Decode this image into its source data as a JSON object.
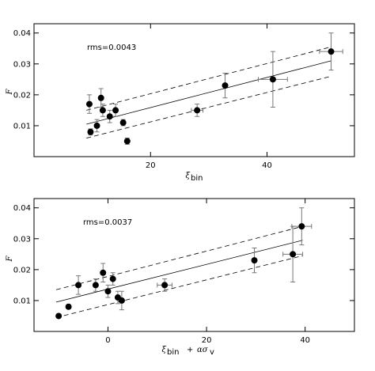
{
  "chart_data": [
    {
      "type": "scatter",
      "xlabel": "ξ_bin",
      "ylabel": "F",
      "annotation": "rms=0.0043",
      "xlim": [
        0,
        55
      ],
      "ylim": [
        0.0,
        0.043
      ],
      "x_ticks": [
        20,
        40
      ],
      "y_ticks": [
        "0.01",
        "0.02",
        "0.03",
        "0.04"
      ],
      "points": [
        {
          "x": 9.5,
          "y": 0.017,
          "yerr": 0.003
        },
        {
          "x": 9.7,
          "y": 0.008,
          "yerr": 0.001
        },
        {
          "x": 10.8,
          "y": 0.01,
          "yerr": 0.002
        },
        {
          "x": 11.5,
          "y": 0.019,
          "yerr": 0.003
        },
        {
          "x": 11.8,
          "y": 0.015,
          "yerr": 0.002
        },
        {
          "x": 13.0,
          "y": 0.013,
          "yerr": 0.002
        },
        {
          "x": 14.0,
          "y": 0.015,
          "yerr": 0.002
        },
        {
          "x": 15.3,
          "y": 0.011,
          "yerr": 0.001
        },
        {
          "x": 16.0,
          "y": 0.005,
          "yerr": 0.001
        },
        {
          "x": 28.0,
          "y": 0.015,
          "yerr": 0.002,
          "xerr": 1.0
        },
        {
          "x": 32.8,
          "y": 0.023,
          "yerr": 0.004
        },
        {
          "x": 41.0,
          "y": 0.025,
          "yerr": 0.009,
          "xerr": 2.5
        },
        {
          "x": 51.0,
          "y": 0.034,
          "yerr": 0.006,
          "xerr": 2.0
        }
      ],
      "fit_line": [
        [
          9.0,
          0.0105
        ],
        [
          51.0,
          0.031
        ]
      ],
      "upper_band": [
        [
          9.0,
          0.015
        ],
        [
          51.0,
          0.0355
        ]
      ],
      "lower_band": [
        [
          9.0,
          0.006
        ],
        [
          51.0,
          0.026
        ]
      ]
    },
    {
      "type": "scatter",
      "xlabel": "ξ_bin + ασ_v",
      "ylabel": "F",
      "annotation": "rms=0.0037",
      "xlim": [
        -15,
        50
      ],
      "ylim": [
        0.0,
        0.043
      ],
      "x_ticks": [
        0,
        20,
        40
      ],
      "y_ticks": [
        "0.01",
        "0.02",
        "0.03",
        "0.04"
      ],
      "points": [
        {
          "x": -10.0,
          "y": 0.005,
          "yerr": 0.0005
        },
        {
          "x": -8.0,
          "y": 0.008,
          "yerr": 0.0005
        },
        {
          "x": -6.0,
          "y": 0.015,
          "yerr": 0.003
        },
        {
          "x": -2.5,
          "y": 0.015,
          "yerr": 0.002
        },
        {
          "x": -1.0,
          "y": 0.019,
          "yerr": 0.003
        },
        {
          "x": 0.0,
          "y": 0.013,
          "yerr": 0.002
        },
        {
          "x": 1.0,
          "y": 0.017,
          "yerr": 0.002
        },
        {
          "x": 2.0,
          "y": 0.011,
          "yerr": 0.002
        },
        {
          "x": 2.8,
          "y": 0.01,
          "yerr": 0.003
        },
        {
          "x": 11.5,
          "y": 0.015,
          "yerr": 0.002,
          "xerr": 1.5
        },
        {
          "x": 29.7,
          "y": 0.023,
          "yerr": 0.004
        },
        {
          "x": 37.5,
          "y": 0.025,
          "yerr": 0.009,
          "xerr": 2.0
        },
        {
          "x": 39.3,
          "y": 0.034,
          "yerr": 0.006,
          "xerr": 2.0
        }
      ],
      "fit_line": [
        [
          -10.5,
          0.0095
        ],
        [
          39.5,
          0.0295
        ]
      ],
      "upper_band": [
        [
          -10.5,
          0.0135
        ],
        [
          39.5,
          0.034
        ]
      ],
      "lower_band": [
        [
          -10.5,
          0.0045
        ],
        [
          39.5,
          0.0245
        ]
      ]
    }
  ]
}
